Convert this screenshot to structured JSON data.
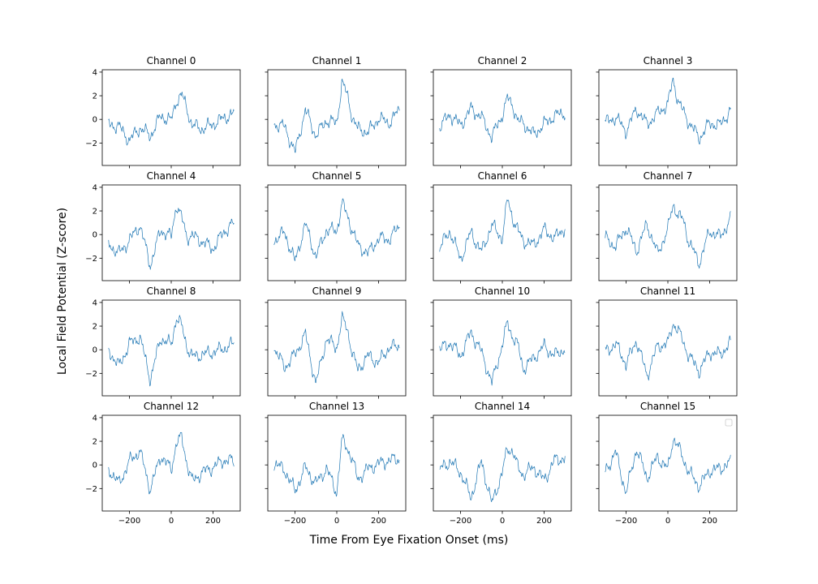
{
  "figure": {
    "xlabel": "Time From Eye Fixation Onset (ms)",
    "ylabel": "Local Field Potential (Z-score)"
  },
  "chart_data": {
    "type": "line",
    "rows": 4,
    "cols": 4,
    "sharex": true,
    "sharey": true,
    "xlim": [
      -330,
      330
    ],
    "ylim": [
      -3.9,
      4.2
    ],
    "xticks": [
      -200,
      0,
      200
    ],
    "xtick_labels": [
      "−200",
      "0",
      "200"
    ],
    "yticks": [
      -2,
      0,
      2,
      4
    ],
    "ytick_labels": [
      "−2",
      "0",
      "2",
      "4"
    ],
    "x_range": [
      -300,
      300
    ],
    "line_color": "#1f77b4",
    "legend": {
      "visible": true,
      "placement": "top-right",
      "panel_index": 15,
      "entries": []
    },
    "grid": false,
    "panels": [
      {
        "title": "Channel 0",
        "x": [
          -300,
          -250,
          -200,
          -150,
          -100,
          -50,
          0,
          25,
          50,
          75,
          100,
          150,
          200,
          250,
          300
        ],
        "y": [
          -0.4,
          -0.6,
          -1.8,
          -0.7,
          -1.4,
          0.3,
          -0.1,
          1.6,
          2.1,
          0.9,
          -0.5,
          -0.8,
          -0.4,
          0.1,
          0.5
        ]
      },
      {
        "title": "Channel 1",
        "x": [
          -300,
          -250,
          -200,
          -150,
          -100,
          -50,
          0,
          25,
          50,
          75,
          100,
          150,
          200,
          250,
          300
        ],
        "y": [
          -0.4,
          -0.6,
          -2.8,
          0.8,
          -1.4,
          -0.1,
          -0.3,
          3.2,
          2.0,
          0.2,
          -0.8,
          -1.1,
          0.1,
          -0.3,
          0.8
        ]
      },
      {
        "title": "Channel 2",
        "x": [
          -300,
          -250,
          -200,
          -150,
          -100,
          -50,
          0,
          25,
          50,
          75,
          100,
          150,
          200,
          250,
          300
        ],
        "y": [
          -0.6,
          0.4,
          -0.5,
          0.9,
          0.2,
          -1.5,
          0.4,
          1.8,
          1.2,
          -0.2,
          -0.3,
          -1.3,
          -0.4,
          0.3,
          0.6
        ]
      },
      {
        "title": "Channel 3",
        "x": [
          -300,
          -250,
          -200,
          -150,
          -100,
          -50,
          0,
          25,
          50,
          75,
          100,
          150,
          200,
          250,
          300
        ],
        "y": [
          -0.3,
          0.2,
          -1.0,
          0.9,
          -0.4,
          0.5,
          1.3,
          3.4,
          1.5,
          0.6,
          -0.2,
          -1.6,
          -0.3,
          -0.5,
          0.8
        ]
      },
      {
        "title": "Channel 4",
        "x": [
          -300,
          -250,
          -200,
          -150,
          -100,
          -50,
          0,
          25,
          50,
          75,
          100,
          150,
          200,
          250,
          300
        ],
        "y": [
          -0.8,
          -1.6,
          -0.5,
          0.8,
          -2.6,
          0.4,
          -0.2,
          2.6,
          1.4,
          -0.2,
          -0.1,
          -0.6,
          -1.2,
          0.2,
          1.0
        ]
      },
      {
        "title": "Channel 5",
        "x": [
          -300,
          -250,
          -200,
          -150,
          -100,
          -50,
          0,
          25,
          50,
          75,
          100,
          150,
          200,
          250,
          300
        ],
        "y": [
          -0.5,
          0.2,
          -2.3,
          0.9,
          -1.9,
          0.4,
          0.3,
          2.7,
          1.6,
          0.4,
          -0.9,
          -1.6,
          -0.3,
          -0.4,
          0.7
        ]
      },
      {
        "title": "Channel 6",
        "x": [
          -300,
          -250,
          -200,
          -150,
          -100,
          -50,
          0,
          25,
          50,
          75,
          100,
          150,
          200,
          250,
          300
        ],
        "y": [
          -1.1,
          0.3,
          -2.1,
          0.2,
          -1.5,
          0.8,
          -0.3,
          3.0,
          1.4,
          0.3,
          -0.5,
          -0.9,
          0.4,
          -0.3,
          0.6
        ]
      },
      {
        "title": "Channel 7",
        "x": [
          -300,
          -250,
          -200,
          -150,
          -100,
          -50,
          0,
          25,
          50,
          75,
          100,
          150,
          200,
          250,
          300
        ],
        "y": [
          -0.3,
          -1.0,
          0.6,
          -1.4,
          0.9,
          -1.6,
          0.4,
          2.6,
          1.6,
          1.2,
          -0.6,
          -2.4,
          0.3,
          -0.2,
          1.3
        ]
      },
      {
        "title": "Channel 8",
        "x": [
          -300,
          -250,
          -200,
          -150,
          -100,
          -50,
          0,
          25,
          50,
          75,
          100,
          150,
          200,
          250,
          300
        ],
        "y": [
          0.0,
          -1.4,
          0.5,
          1.1,
          -2.5,
          1.0,
          0.4,
          2.8,
          2.0,
          0.3,
          -0.6,
          -0.4,
          -0.2,
          0.1,
          0.5
        ]
      },
      {
        "title": "Channel 9",
        "x": [
          -300,
          -250,
          -200,
          -150,
          -100,
          -50,
          0,
          25,
          50,
          75,
          100,
          150,
          200,
          250,
          300
        ],
        "y": [
          0.2,
          -1.5,
          -0.4,
          1.3,
          -2.9,
          0.9,
          0.2,
          2.6,
          1.8,
          -0.3,
          -1.7,
          -0.5,
          -1.1,
          0.2,
          0.3
        ]
      },
      {
        "title": "Channel 10",
        "x": [
          -300,
          -250,
          -200,
          -150,
          -100,
          -50,
          0,
          25,
          50,
          75,
          100,
          150,
          200,
          250,
          300
        ],
        "y": [
          0.0,
          0.6,
          -0.5,
          1.5,
          -0.2,
          -2.8,
          0.4,
          2.3,
          1.1,
          0.3,
          -1.6,
          -0.7,
          0.3,
          -0.5,
          0.1
        ]
      },
      {
        "title": "Channel 11",
        "x": [
          -300,
          -250,
          -200,
          -150,
          -100,
          -50,
          0,
          25,
          50,
          75,
          100,
          150,
          200,
          250,
          300
        ],
        "y": [
          -0.2,
          0.5,
          -1.2,
          0.8,
          -2.2,
          0.3,
          0.5,
          2.3,
          1.6,
          0.6,
          -0.5,
          -1.8,
          -0.2,
          -0.4,
          0.6
        ]
      },
      {
        "title": "Channel 12",
        "x": [
          -300,
          -250,
          -200,
          -150,
          -100,
          -50,
          0,
          25,
          50,
          75,
          100,
          150,
          200,
          250,
          300
        ],
        "y": [
          -0.3,
          -1.6,
          0.3,
          1.2,
          -2.1,
          0.8,
          -0.4,
          1.9,
          2.3,
          0.2,
          -1.4,
          -0.6,
          -0.2,
          0.4,
          0.3
        ]
      },
      {
        "title": "Channel 13",
        "x": [
          -300,
          -250,
          -200,
          -150,
          -100,
          -50,
          0,
          25,
          50,
          75,
          100,
          150,
          200,
          250,
          300
        ],
        "y": [
          0.1,
          -0.4,
          -2.2,
          -0.2,
          -1.6,
          -0.3,
          -2.3,
          2.1,
          1.5,
          0.4,
          -1.2,
          -0.3,
          0.1,
          0.4,
          0.5
        ]
      },
      {
        "title": "Channel 14",
        "x": [
          -300,
          -250,
          -200,
          -150,
          -100,
          -50,
          0,
          25,
          50,
          75,
          100,
          150,
          200,
          250,
          300
        ],
        "y": [
          -0.4,
          0.3,
          -0.6,
          -2.8,
          0.3,
          -3.3,
          -0.6,
          1.4,
          1.2,
          -0.3,
          -0.8,
          -0.2,
          -1.3,
          0.4,
          0.6
        ]
      },
      {
        "title": "Channel 15",
        "x": [
          -300,
          -250,
          -200,
          -150,
          -100,
          -50,
          0,
          25,
          50,
          75,
          100,
          150,
          200,
          250,
          300
        ],
        "y": [
          -0.6,
          1.1,
          -2.4,
          1.4,
          -1.1,
          0.7,
          -0.4,
          2.3,
          1.5,
          0.5,
          -0.6,
          -1.8,
          -0.5,
          -0.3,
          0.2
        ]
      }
    ]
  }
}
